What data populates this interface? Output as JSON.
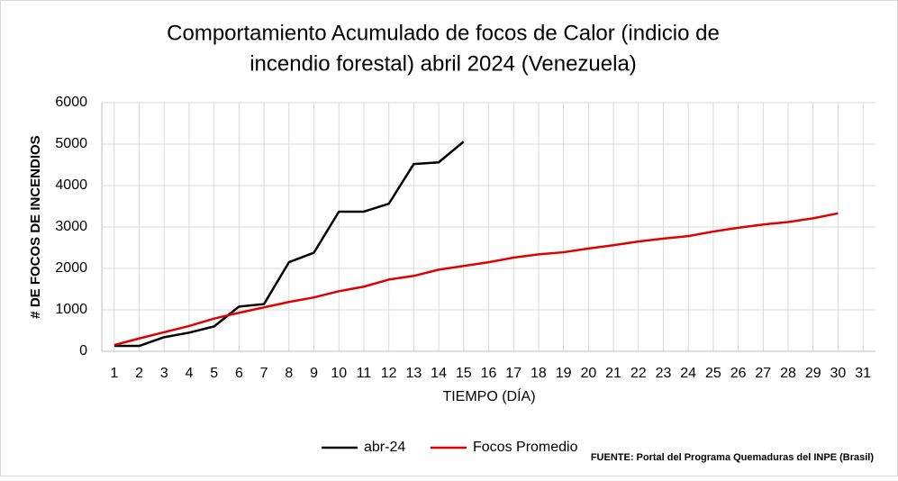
{
  "chart_data": {
    "type": "line",
    "title": [
      "Comportamiento  Acumulado  de  focos  de  Calor  (indicio  de",
      "incendio  forestal)   abril 2024 (Venezuela)"
    ],
    "xlabel": "TIEMPO (DÍA)",
    "ylabel": "# DE FOCOS DE INCENDIOS",
    "source": "FUENTE:  Portal del Programa Quemaduras del INPE (Brasil)",
    "categories": [
      1,
      2,
      3,
      4,
      5,
      6,
      7,
      8,
      9,
      10,
      11,
      12,
      13,
      14,
      15,
      16,
      17,
      18,
      19,
      20,
      21,
      22,
      23,
      24,
      25,
      26,
      27,
      28,
      29,
      30,
      31
    ],
    "series": [
      {
        "name": "abr-24",
        "color": "#000000",
        "values": [
          130,
          130,
          340,
          450,
          600,
          1080,
          1140,
          2150,
          2380,
          3370,
          3370,
          3560,
          4520,
          4560,
          5060,
          null,
          null,
          null,
          null,
          null,
          null,
          null,
          null,
          null,
          null,
          null,
          null,
          null,
          null,
          null,
          null
        ]
      },
      {
        "name": "Focos Promedio",
        "color": "#e00000",
        "values": [
          150,
          310,
          460,
          610,
          790,
          930,
          1060,
          1190,
          1300,
          1450,
          1560,
          1730,
          1820,
          1970,
          2060,
          2150,
          2260,
          2340,
          2390,
          2480,
          2560,
          2650,
          2720,
          2780,
          2890,
          2980,
          3060,
          3120,
          3210,
          3330,
          null
        ]
      }
    ],
    "ylim": [
      0,
      6000
    ],
    "yticks": [
      0,
      1000,
      2000,
      3000,
      4000,
      5000,
      6000
    ],
    "grid": true,
    "legend": "bottom"
  }
}
